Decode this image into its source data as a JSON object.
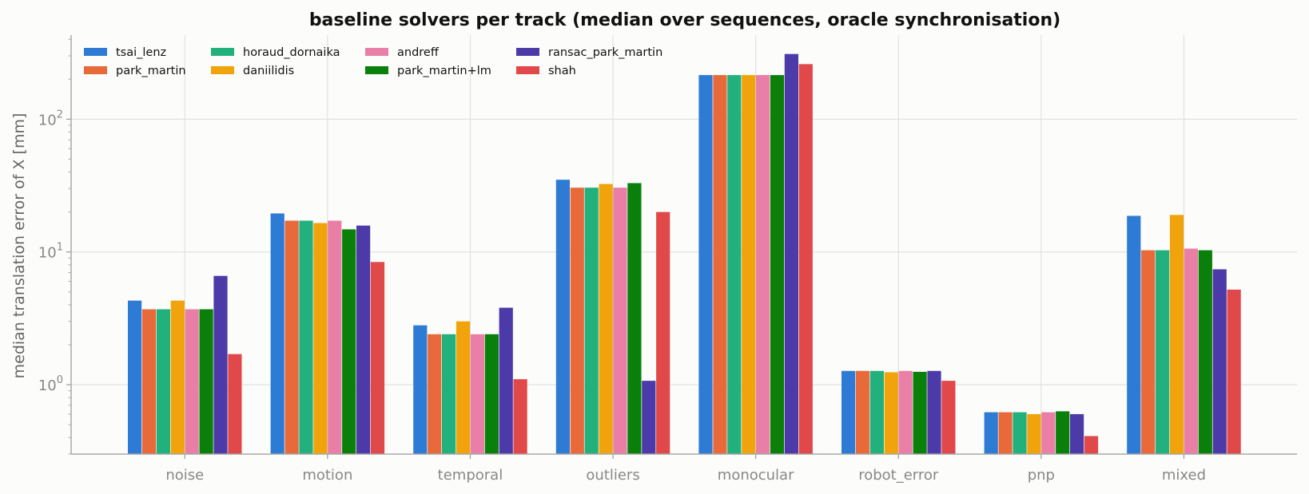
{
  "chart_data": {
    "type": "bar",
    "title": "baseline solvers per track (median over sequences, oracle synchronisation)",
    "ylabel": "median translation error of X [mm]",
    "xlabel": "",
    "yscale": "log",
    "ylim": [
      0.3,
      430
    ],
    "yticks": [
      {
        "value": 1,
        "base": "10",
        "exp": "0"
      },
      {
        "value": 10,
        "base": "10",
        "exp": "1"
      },
      {
        "value": 100,
        "base": "10",
        "exp": "2"
      }
    ],
    "grid": true,
    "legend_position": "top-left",
    "categories": [
      "noise",
      "motion",
      "temporal",
      "outliers",
      "monocular",
      "robot_error",
      "pnp",
      "mixed"
    ],
    "series": [
      {
        "name": "tsai_lenz",
        "color": "#2e7bd6",
        "values": [
          4.3,
          19.5,
          2.8,
          35,
          215,
          1.27,
          0.62,
          18.7
        ]
      },
      {
        "name": "park_martin",
        "color": "#e8693a",
        "values": [
          3.7,
          17.2,
          2.4,
          30.5,
          215,
          1.27,
          0.62,
          10.3
        ]
      },
      {
        "name": "horaud_dornaika",
        "color": "#22b07d",
        "values": [
          3.7,
          17.2,
          2.4,
          30.5,
          215,
          1.27,
          0.62,
          10.3
        ]
      },
      {
        "name": "daniilidis",
        "color": "#f0a30a",
        "values": [
          4.3,
          16.5,
          3.0,
          32.5,
          215,
          1.24,
          0.6,
          19.0
        ]
      },
      {
        "name": "andreff",
        "color": "#e97fa6",
        "values": [
          3.7,
          17.2,
          2.4,
          30.5,
          215,
          1.27,
          0.62,
          10.6
        ]
      },
      {
        "name": "park_martin+lm",
        "color": "#0a7f0a",
        "values": [
          3.7,
          14.8,
          2.4,
          33.0,
          215,
          1.25,
          0.63,
          10.3
        ]
      },
      {
        "name": "ransac_park_martin",
        "color": "#4b3aa8",
        "values": [
          6.6,
          15.8,
          3.8,
          1.07,
          310,
          1.27,
          0.6,
          7.4
        ]
      },
      {
        "name": "shah",
        "color": "#e0484a",
        "values": [
          1.7,
          8.4,
          1.1,
          20.0,
          260,
          1.07,
          0.41,
          5.2
        ]
      }
    ]
  }
}
